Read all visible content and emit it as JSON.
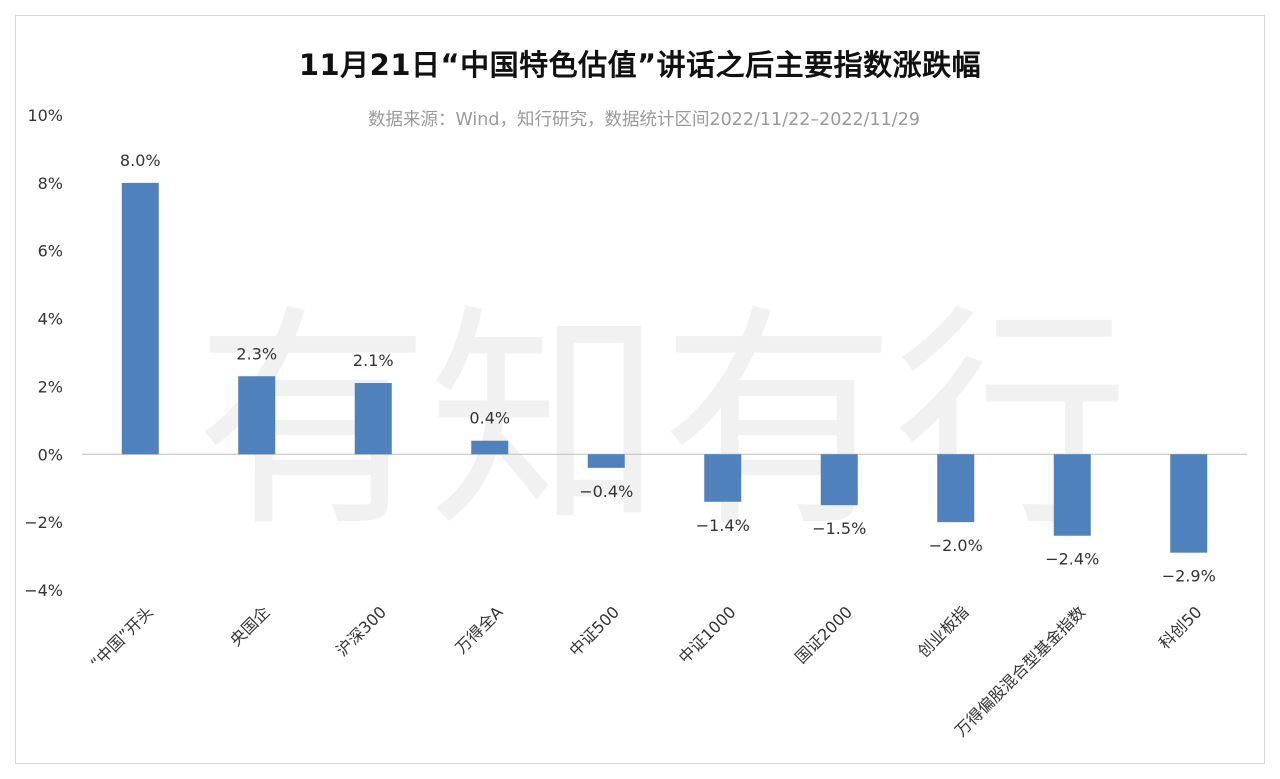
{
  "title": "11月21日“中国特色估值”讲话之后主要指数涨跌幅",
  "subtitle": "数据来源：Wind，知行研究，数据统计区间2022/11/22–2022/11/29",
  "watermark": "有知有行",
  "colors": {
    "bar": "#4f81bd",
    "axis": "#bfbfbf",
    "text": "#333333"
  },
  "chart_data": {
    "type": "bar",
    "categories": [
      "“中国”开头",
      "央国企",
      "沪深300",
      "万得全A",
      "中证500",
      "中证1000",
      "国证2000",
      "创业板指",
      "万得偏股混合型基金指数",
      "科创50"
    ],
    "values": [
      8.0,
      2.3,
      2.1,
      0.4,
      -0.4,
      -1.4,
      -1.5,
      -2.0,
      -2.4,
      -2.9
    ],
    "value_labels": [
      "8.0%",
      "2.3%",
      "2.1%",
      "0.4%",
      "−0.4%",
      "−1.4%",
      "−1.5%",
      "−2.0%",
      "−2.4%",
      "−2.9%"
    ],
    "title": "11月21日“中国特色估值”讲话之后主要指数涨跌幅",
    "ylim": [
      -4,
      10
    ],
    "yticks": [
      -4,
      -2,
      0,
      2,
      4,
      6,
      8,
      10
    ],
    "ytick_labels": [
      "−4%",
      "−2%",
      "0%",
      "2%",
      "4%",
      "6%",
      "8%",
      "10%"
    ],
    "grid": false,
    "legend": "none"
  }
}
